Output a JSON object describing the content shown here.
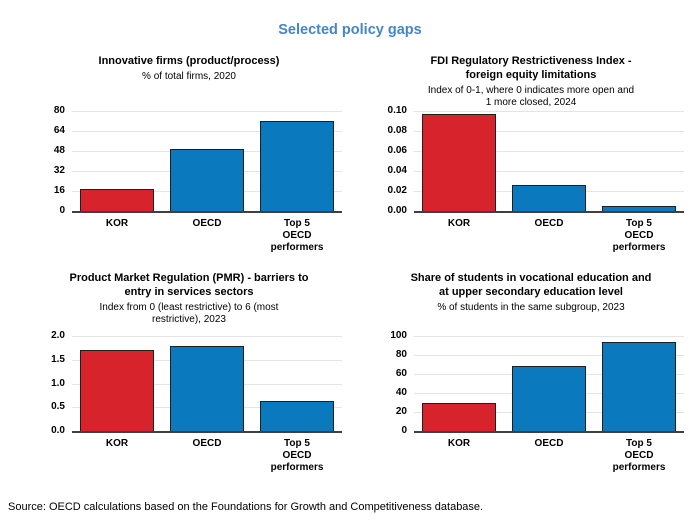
{
  "title": "Selected policy gaps",
  "source_note": "Source: OECD calculations based on the Foundations for Growth and Competitiveness database.",
  "colors": {
    "title_blue": "#4486C7",
    "kor_red": "#D7232B",
    "oecd_blue": "#0B79BD",
    "bar_border": "#1F1F1F",
    "gridline": "#E4E4E4",
    "axis": "#404040"
  },
  "chart_data": [
    {
      "type": "bar",
      "title": "Innovative firms (product/process)",
      "subtitle": "% of total firms, 2020",
      "categories": [
        "KOR",
        "OECD",
        "Top 5\nOECD\nperformers"
      ],
      "values": [
        18,
        50,
        72
      ],
      "bar_colors": [
        "#D7232B",
        "#0B79BD",
        "#0B79BD"
      ],
      "ytick_labels": [
        "0",
        "16",
        "32",
        "48",
        "64",
        "80"
      ],
      "ylim": [
        0,
        80
      ],
      "grid": true,
      "legend": "none"
    },
    {
      "type": "bar",
      "title": "FDI Regulatory Restrictiveness Index -\nforeign equity limitations",
      "subtitle": "Index of 0-1, where 0 indicates more open and\n1 more closed, 2024",
      "categories": [
        "KOR",
        "OECD",
        "Top 5\nOECD\nperformers"
      ],
      "values": [
        0.097,
        0.026,
        0.005
      ],
      "bar_colors": [
        "#D7232B",
        "#0B79BD",
        "#0B79BD"
      ],
      "ytick_labels": [
        "0.00",
        "0.02",
        "0.04",
        "0.06",
        "0.08",
        "0.10"
      ],
      "ylim": [
        0,
        0.1
      ],
      "grid": true,
      "legend": "none"
    },
    {
      "type": "bar",
      "title": "Product Market Regulation (PMR) - barriers to\nentry in services sectors",
      "subtitle": "Index from 0 (least restrictive) to 6 (most\nrestrictive), 2023",
      "categories": [
        "KOR",
        "OECD",
        "Top 5\nOECD\nperformers"
      ],
      "values": [
        1.7,
        1.78,
        0.63
      ],
      "bar_colors": [
        "#D7232B",
        "#0B79BD",
        "#0B79BD"
      ],
      "ytick_labels": [
        "0.0",
        "0.5",
        "1.0",
        "1.5",
        "2.0"
      ],
      "ylim": [
        0,
        2.0
      ],
      "grid": true,
      "legend": "none"
    },
    {
      "type": "bar",
      "title": "Share of students in vocational education and\nat upper secondary education level",
      "subtitle": "% of students in the same subgroup, 2023",
      "categories": [
        "KOR",
        "OECD",
        "Top 5\nOECD\nperformers"
      ],
      "values": [
        30,
        68,
        94
      ],
      "bar_colors": [
        "#D7232B",
        "#0B79BD",
        "#0B79BD"
      ],
      "ytick_labels": [
        "0",
        "20",
        "40",
        "60",
        "80",
        "100"
      ],
      "ylim": [
        0,
        100
      ],
      "grid": true,
      "legend": "none"
    }
  ]
}
